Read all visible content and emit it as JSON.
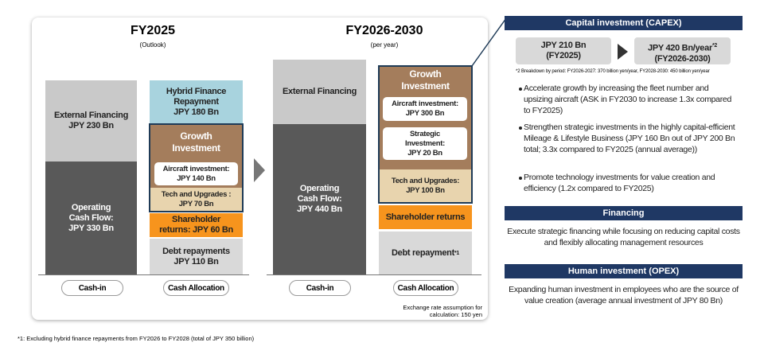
{
  "fy2025": {
    "title": "FY2025",
    "subtitle": "(Outlook)",
    "cash_in": {
      "external": "External Financing\nJPY 230 Bn",
      "operating": "Operating\nCash Flow:\nJPY 330 Bn",
      "label": "Cash-in"
    },
    "allocation": {
      "hybrid": "Hybrid Finance\nRepayment\nJPY 180 Bn",
      "growth": "Growth\nInvestment",
      "aircraft": "Aircraft investment:\nJPY 140 Bn",
      "tech": "Tech and Upgrades :\nJPY 70 Bn",
      "shareholder": "Shareholder\nreturns: JPY 60 Bn",
      "debt": "Debt repayments\nJPY 110 Bn",
      "label": "Cash Allocation"
    }
  },
  "fy2026_2030": {
    "title": "FY2026-2030",
    "subtitle": "(per year)",
    "cash_in": {
      "external": "External Financing",
      "operating": "Operating\nCash Flow:\nJPY 440 Bn",
      "label": "Cash-in"
    },
    "allocation": {
      "growth": "Growth\nInvestment",
      "aircraft": "Aircraft investment:\nJPY 300 Bn",
      "strategic": "Strategic\nInvestment:\nJPY 20 Bn",
      "tech": "Tech and Upgrades:\nJPY 100 Bn",
      "shareholder": "Shareholder returns",
      "debt": "Debt repayment",
      "debt_note": "*1",
      "label": "Cash Allocation"
    }
  },
  "exchange_note": "Exchange rate assumption for\ncalculation: 150 yen",
  "footnote": "*1: Excluding hybrid finance repayments from FY2026 to FY2028 (total of JPY 350 billion)",
  "capex": {
    "header": "Capital investment (CAPEX)",
    "from": "JPY 210 Bn\n(FY2025)",
    "to": "JPY 420 Bn/year",
    "to_note": "*2",
    "to_period": "(FY2026-2030)",
    "breakdown": "*2 Breakdown by period: FY2026-2027: 370 billion yen/year, FY2028-2030: 450 billion yen/year",
    "bullets": [
      "Accelerate growth by increasing the fleet number and upsizing aircraft (ASK in FY2030 to increase 1.3x compared to FY2025)",
      "Strengthen strategic investments in the highly capital-efficient Mileage & Lifestyle Business (JPY 160 Bn out of JPY 200 Bn total; 3.3x compared to FY2025 (annual average))",
      "Promote technology investments for value creation and efficiency (1.2x compared to FY2025)"
    ]
  },
  "financing": {
    "header": "Financing",
    "text": "Execute strategic financing while focusing on reducing capital costs and flexibly allocating management resources"
  },
  "human": {
    "header": "Human investment (OPEX)",
    "text": "Expanding human investment in employees who are the source of value creation (average annual investment of JPY 80 Bn)"
  }
}
